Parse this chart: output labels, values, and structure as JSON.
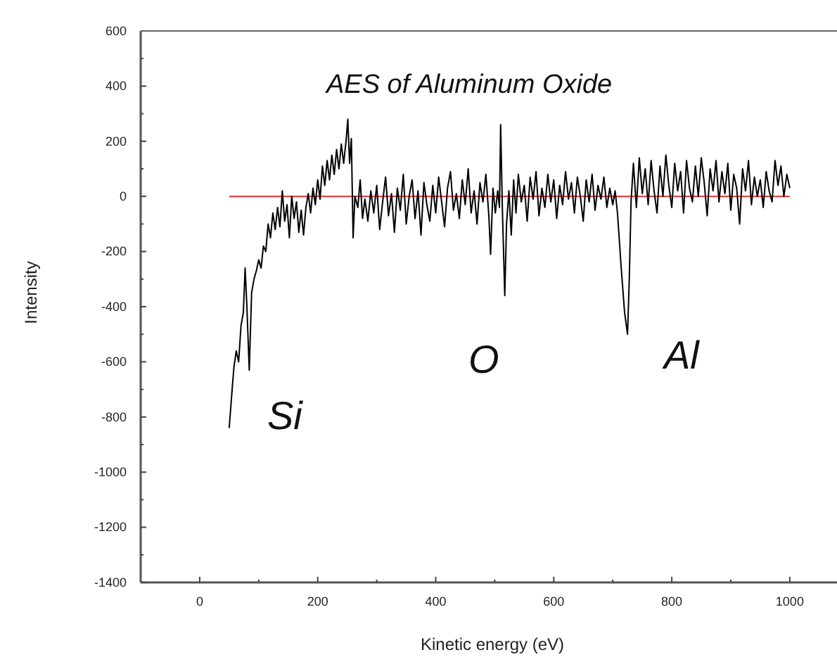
{
  "chart_data": {
    "type": "line",
    "title": "AES of Aluminum Oxide",
    "xlabel": "Kinetic energy (eV)",
    "ylabel": "Intensity",
    "xlim": [
      -100,
      1080
    ],
    "ylim": [
      -1400,
      600
    ],
    "xticks": [
      0,
      {
        "value": 100,
        "label": null
      },
      200,
      {
        "value": 300,
        "label": null
      },
      400,
      {
        "value": 500,
        "label": null
      },
      600,
      {
        "value": 700,
        "label": null
      },
      800,
      {
        "value": 900,
        "label": null
      },
      1000
    ],
    "yticks": [
      -1400,
      {
        "value": -1300,
        "label": null
      },
      -1200,
      {
        "value": -1100,
        "label": null
      },
      -1000,
      {
        "value": -900,
        "label": null
      },
      -800,
      {
        "value": -700,
        "label": null
      },
      -600,
      {
        "value": -500,
        "label": null
      },
      -400,
      {
        "value": -300,
        "label": null
      },
      -200,
      {
        "value": -100,
        "label": null
      },
      0,
      {
        "value": 100,
        "label": null
      },
      200,
      {
        "value": 300,
        "label": null
      },
      400,
      {
        "value": 500,
        "label": null
      },
      600
    ],
    "grid": false,
    "marker": "none",
    "line_style": "solid",
    "annotations": [
      "Si",
      "O",
      "Al"
    ],
    "series": [
      {
        "color": "#000000",
        "x": [
          50,
          55,
          58,
          62,
          66,
          70,
          74,
          77,
          80,
          84,
          88,
          92,
          96,
          100,
          104,
          108,
          112,
          116,
          120,
          124,
          128,
          132,
          136,
          140,
          144,
          148,
          152,
          156,
          160,
          164,
          168,
          172,
          176,
          180,
          184,
          188,
          192,
          196,
          200,
          204,
          208,
          212,
          216,
          220,
          224,
          228,
          232,
          236,
          240,
          244,
          248,
          251,
          254,
          257,
          260,
          263,
          268,
          272,
          276,
          280,
          285,
          290,
          295,
          300,
          305,
          310,
          315,
          320,
          325,
          330,
          335,
          340,
          345,
          350,
          355,
          360,
          365,
          370,
          375,
          380,
          385,
          390,
          395,
          400,
          405,
          410,
          415,
          420,
          425,
          430,
          435,
          440,
          445,
          450,
          455,
          460,
          465,
          470,
          475,
          480,
          485,
          490,
          493,
          497,
          501,
          505,
          508,
          510,
          513,
          517,
          520,
          524,
          528,
          532,
          536,
          540,
          545,
          550,
          555,
          560,
          565,
          570,
          575,
          580,
          585,
          590,
          595,
          600,
          605,
          610,
          615,
          620,
          625,
          630,
          635,
          640,
          645,
          650,
          655,
          660,
          665,
          670,
          675,
          680,
          685,
          690,
          695,
          700,
          704,
          708,
          714,
          720,
          725,
          728,
          731,
          735,
          740,
          745,
          750,
          755,
          760,
          765,
          770,
          775,
          780,
          785,
          790,
          795,
          800,
          805,
          810,
          815,
          820,
          825,
          830,
          835,
          840,
          845,
          850,
          855,
          860,
          865,
          870,
          875,
          880,
          885,
          890,
          895,
          900,
          905,
          910,
          915,
          920,
          925,
          930,
          935,
          940,
          945,
          950,
          955,
          960,
          965,
          970,
          975,
          980,
          985,
          990,
          995,
          1000
        ],
        "values": [
          -840,
          -700,
          -620,
          -560,
          -600,
          -470,
          -420,
          -260,
          -400,
          -630,
          -350,
          -300,
          -270,
          -230,
          -260,
          -180,
          -200,
          -100,
          -150,
          -60,
          -120,
          -40,
          -110,
          20,
          -90,
          -30,
          -150,
          0,
          -80,
          -20,
          -130,
          -50,
          -140,
          -40,
          10,
          -60,
          30,
          -30,
          60,
          -10,
          110,
          40,
          130,
          60,
          150,
          80,
          170,
          100,
          190,
          120,
          200,
          280,
          120,
          210,
          -150,
          0,
          -40,
          60,
          -80,
          -10,
          -90,
          20,
          -60,
          40,
          -120,
          -20,
          70,
          -70,
          10,
          -130,
          30,
          -50,
          80,
          -100,
          0,
          60,
          -80,
          20,
          -140,
          50,
          -30,
          -90,
          40,
          -60,
          70,
          -20,
          -110,
          30,
          90,
          -50,
          10,
          -80,
          60,
          -30,
          100,
          -60,
          20,
          -100,
          50,
          -20,
          80,
          -70,
          -210,
          30,
          -60,
          20,
          -40,
          260,
          -50,
          -360,
          -100,
          20,
          -140,
          60,
          -60,
          80,
          -20,
          40,
          -90,
          70,
          -10,
          90,
          -70,
          30,
          -40,
          80,
          -20,
          60,
          -80,
          40,
          -30,
          90,
          -10,
          50,
          -60,
          70,
          0,
          -90,
          60,
          -20,
          80,
          -50,
          40,
          -10,
          70,
          -40,
          30,
          -30,
          20,
          -60,
          -250,
          -420,
          -500,
          -300,
          -20,
          120,
          -40,
          140,
          10,
          100,
          -30,
          130,
          20,
          -60,
          110,
          0,
          150,
          40,
          -40,
          120,
          20,
          90,
          -60,
          130,
          30,
          -20,
          110,
          0,
          140,
          50,
          -70,
          100,
          20,
          130,
          -20,
          90,
          10,
          120,
          -50,
          80,
          30,
          -100,
          100,
          20,
          130,
          -30,
          70,
          0,
          60,
          -40,
          90,
          20,
          -20,
          130,
          40,
          110,
          0,
          80,
          30
        ]
      },
      {
        "color": "#e03030",
        "x": [
          50,
          1000
        ],
        "values": [
          0,
          0
        ]
      }
    ]
  }
}
